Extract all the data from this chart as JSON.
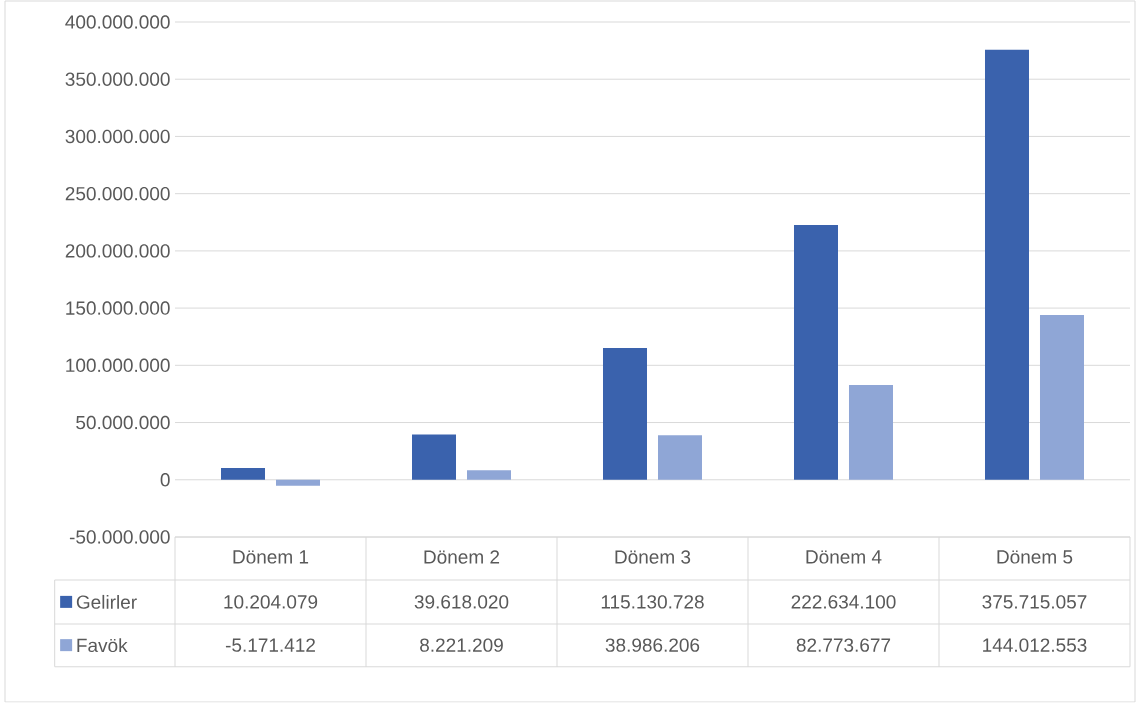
{
  "chart_data": {
    "type": "bar",
    "categories": [
      "Dönem 1",
      "Dönem 2",
      "Dönem 3",
      "Dönem 4",
      "Dönem 5"
    ],
    "series": [
      {
        "name": "Gelirler",
        "color": "#3a62ad",
        "values": [
          10204079,
          39618020,
          115130728,
          222634100,
          375715057
        ],
        "value_labels": [
          "10.204.079",
          "39.618.020",
          "115.130.728",
          "222.634.100",
          "375.715.057"
        ]
      },
      {
        "name": "Favök",
        "color": "#8fa6d6",
        "values": [
          -5171412,
          8221209,
          38986206,
          82773677,
          144012553
        ],
        "value_labels": [
          "-5.171.412",
          "8.221.209",
          "38.986.206",
          "82.773.677",
          "144.012.553"
        ]
      }
    ],
    "ylim": [
      -50000000,
      400000000
    ],
    "yticks": [
      {
        "value": -50000000,
        "label": "-50.000.000"
      },
      {
        "value": 0,
        "label": "0"
      },
      {
        "value": 50000000,
        "label": "50.000.000"
      },
      {
        "value": 100000000,
        "label": "100.000.000"
      },
      {
        "value": 150000000,
        "label": "150.000.000"
      },
      {
        "value": 200000000,
        "label": "200.000.000"
      },
      {
        "value": 250000000,
        "label": "250.000.000"
      },
      {
        "value": 300000000,
        "label": "300.000.000"
      },
      {
        "value": 350000000,
        "label": "350.000.000"
      },
      {
        "value": 400000000,
        "label": "400.000.000"
      }
    ],
    "grid": "y",
    "legend": "bottom"
  }
}
